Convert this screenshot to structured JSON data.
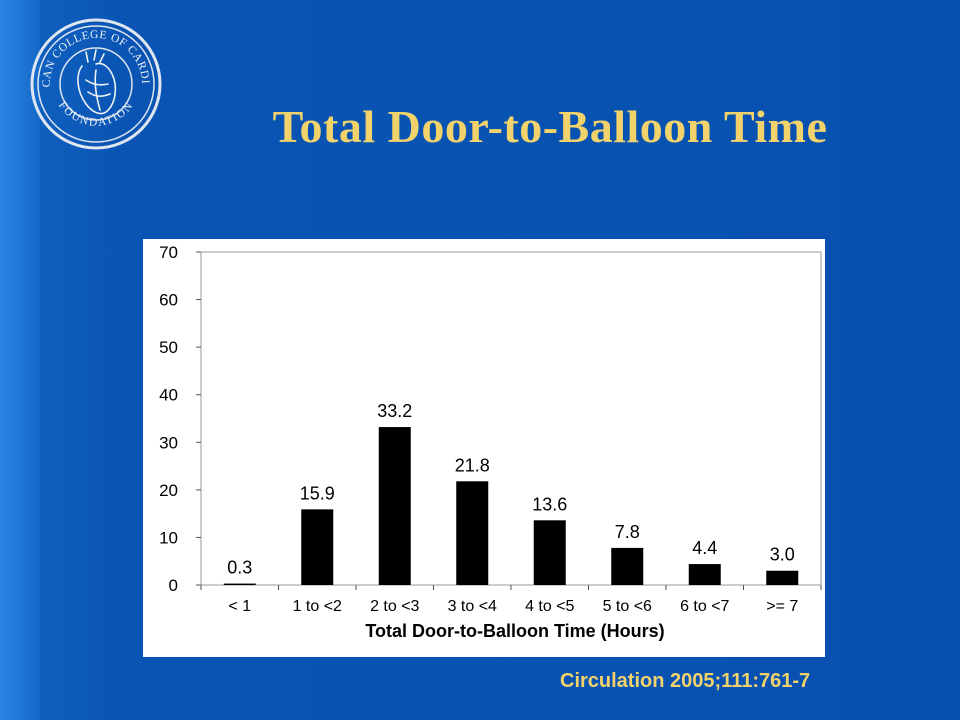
{
  "slide": {
    "title": "Total Door-to-Balloon Time",
    "citation": "Circulation  2005;111:761-7",
    "logo": {
      "icon": "heart-seal-icon",
      "text_top": "AMERICAN COLLEGE OF CARDIOLOGY",
      "text_bottom": "FOUNDATION"
    },
    "colors": {
      "background": "#0750b0",
      "title": "#f2d36b",
      "bars": "#000000",
      "panel": "#ffffff"
    }
  },
  "chart_data": {
    "type": "bar",
    "categories": [
      "< 1",
      "1 to <2",
      "2 to <3",
      "3 to <4",
      "4 to <5",
      "5 to <6",
      "6 to <7",
      ">= 7"
    ],
    "values": [
      0.3,
      15.9,
      33.2,
      21.8,
      13.6,
      7.8,
      4.4,
      3.0
    ],
    "data_labels": [
      "0.3",
      "15.9",
      "33.2",
      "21.8",
      "13.6",
      "7.8",
      "4.4",
      "3.0"
    ],
    "xlabel": "Total Door-to-Balloon Time (Hours)",
    "ylabel": "",
    "ylim": [
      0,
      70
    ],
    "yticks": [
      0,
      10,
      20,
      30,
      40,
      50,
      60,
      70
    ],
    "grid": false
  }
}
